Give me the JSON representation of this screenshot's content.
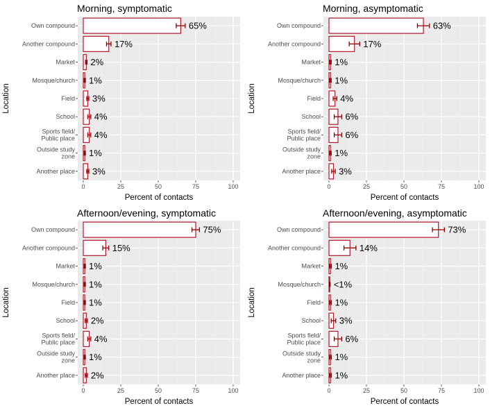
{
  "chart_data": [
    {
      "type": "bar",
      "orientation": "horizontal",
      "title": "Morning, symptomatic",
      "ylabel": "Location",
      "xlabel": "Percent of contacts",
      "xlim": [
        0,
        100
      ],
      "xticks": [
        "0",
        "25",
        "50",
        "75",
        "100"
      ],
      "categories": [
        "Own compound",
        "Another compound",
        "Market",
        "Mosque/church",
        "Field",
        "School",
        "Sports field/\nPublic place",
        "Outside study\nzone",
        "Another place"
      ],
      "values": [
        65,
        17,
        2,
        1,
        3,
        4,
        4,
        1,
        3
      ],
      "labels": [
        "65%",
        "17%",
        "2%",
        "1%",
        "3%",
        "4%",
        "4%",
        "1%",
        "3%"
      ],
      "error_low": [
        62,
        15.5,
        1.5,
        0.6,
        2.3,
        3,
        3,
        0.6,
        2.3
      ],
      "error_high": [
        68,
        18.5,
        2.5,
        1.4,
        3.7,
        5,
        5,
        1.4,
        3.7
      ]
    },
    {
      "type": "bar",
      "orientation": "horizontal",
      "title": "Morning, asymptomatic",
      "ylabel": "Location",
      "xlabel": "Percent of contacts",
      "xlim": [
        0,
        100
      ],
      "xticks": [
        "0",
        "25",
        "50",
        "75",
        "100"
      ],
      "categories": [
        "Own compound",
        "Another compound",
        "Market",
        "Mosque/church",
        "Field",
        "School",
        "Sports field/\nPublic place",
        "Outside study\nzone",
        "Another place"
      ],
      "values": [
        63,
        17,
        1,
        1,
        4,
        6,
        6,
        1,
        3
      ],
      "labels": [
        "63%",
        "17%",
        "1%",
        "1%",
        "4%",
        "6%",
        "6%",
        "1%",
        "3%"
      ],
      "error_low": [
        59,
        13.5,
        0.5,
        0.5,
        2.8,
        3.5,
        3.5,
        0.5,
        1.8
      ],
      "error_high": [
        67,
        20.5,
        1.5,
        1.5,
        5.2,
        8.5,
        8.5,
        1.5,
        4.2
      ]
    },
    {
      "type": "bar",
      "orientation": "horizontal",
      "title": "Afternoon/evening, symptomatic",
      "ylabel": "Location",
      "xlabel": "Percent of contacts",
      "xlim": [
        0,
        100
      ],
      "xticks": [
        "0",
        "25",
        "50",
        "75",
        "100"
      ],
      "categories": [
        "Own compound",
        "Another compound",
        "Market",
        "Mosque/church",
        "Field",
        "School",
        "Sports field/\nPublic place",
        "Outside study\nzone",
        "Another place"
      ],
      "values": [
        75,
        15,
        1,
        1,
        1,
        2,
        4,
        1,
        2
      ],
      "labels": [
        "75%",
        "15%",
        "1%",
        "1%",
        "1%",
        "2%",
        "4%",
        "1%",
        "2%"
      ],
      "error_low": [
        72.5,
        13,
        0.6,
        0.6,
        0.6,
        1.3,
        3,
        0.6,
        1.3
      ],
      "error_high": [
        77.5,
        17,
        1.4,
        1.4,
        1.4,
        2.7,
        5,
        1.4,
        2.7
      ]
    },
    {
      "type": "bar",
      "orientation": "horizontal",
      "title": "Afternoon/evening, asymptomatic",
      "ylabel": "Location",
      "xlabel": "Percent of contacts",
      "xlim": [
        0,
        100
      ],
      "xticks": [
        "0",
        "25",
        "50",
        "75",
        "100"
      ],
      "categories": [
        "Own compound",
        "Another compound",
        "Market",
        "Mosque/church",
        "Field",
        "School",
        "Sports field/\nPublic place",
        "Outside study\nzone",
        "Another place"
      ],
      "values": [
        73,
        14,
        1,
        0.5,
        1,
        3,
        6,
        1,
        1
      ],
      "labels": [
        "73%",
        "14%",
        "1%",
        "<1%",
        "1%",
        "3%",
        "6%",
        "1%",
        "1%"
      ],
      "error_low": [
        69,
        10,
        0.4,
        0.2,
        0.4,
        1.5,
        3.5,
        0.4,
        0.4
      ],
      "error_high": [
        77,
        18,
        1.6,
        0.8,
        1.6,
        4.5,
        8.5,
        1.6,
        1.6
      ]
    }
  ],
  "colors": {
    "panel_bg": "#ebebeb",
    "grid_major": "#ffffff",
    "grid_minor": "#f4f4f4",
    "bar_stroke": "#b2182b",
    "bar_fill": "#ffffff",
    "errorbar": "#8b0000",
    "tick": "#333333"
  }
}
